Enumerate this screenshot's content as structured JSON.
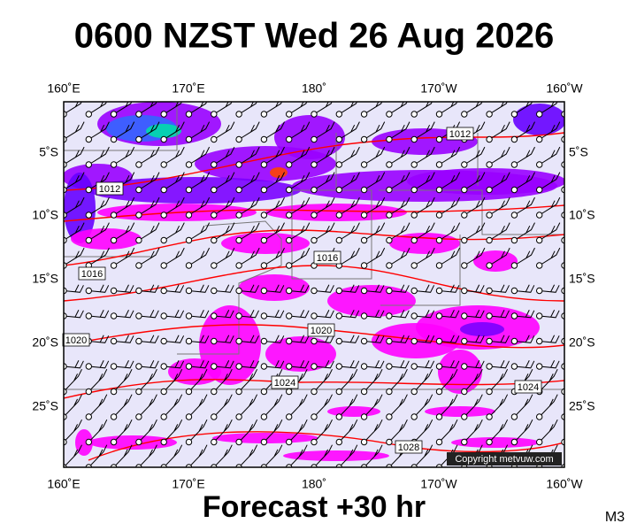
{
  "header": {
    "title": "0600 NZST Wed 26 Aug 2026"
  },
  "axes": {
    "top": [
      "160˚E",
      "170˚E",
      "180˚",
      "170˚W",
      "160˚W"
    ],
    "bottom": [
      "160˚E",
      "170˚E",
      "180˚",
      "170˚W",
      "160˚W"
    ],
    "left": [
      "5˚S",
      "10˚S",
      "15˚S",
      "20˚S",
      "25˚S"
    ],
    "right": [
      "5˚S",
      "10˚S",
      "15˚S",
      "20˚S",
      "25˚S"
    ]
  },
  "isobar_labels": [
    "1012",
    "1012",
    "1016",
    "1016",
    "1020",
    "1020",
    "1024",
    "1024",
    "1028"
  ],
  "copyright": "Copyright metvuw.com",
  "footer": {
    "caption": "Forecast +30 hr",
    "code": "M3"
  }
}
